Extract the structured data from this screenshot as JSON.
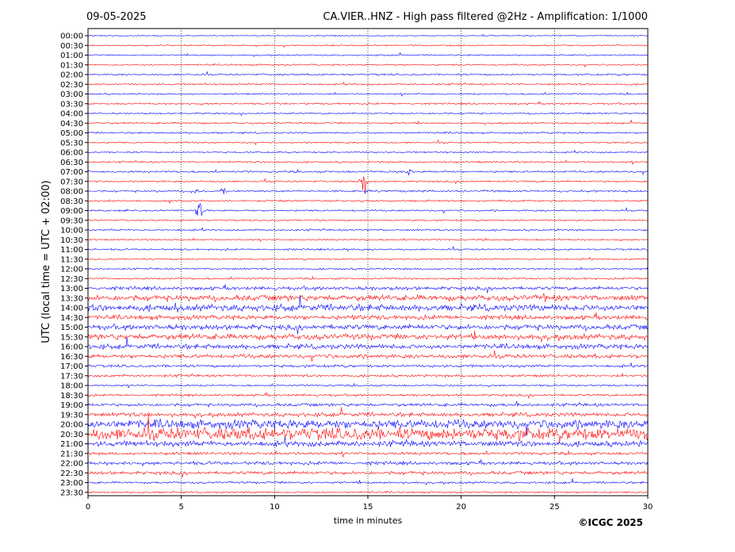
{
  "header": {
    "date": "09-05-2025",
    "title": "CA.VIER..HNZ - High pass filtered @2Hz - Amplification: 1/1000"
  },
  "copyright": "©ICGC 2025",
  "chart_data": {
    "type": "line",
    "description_type": "helicorder",
    "xlabel": "time in minutes",
    "ylabel": "UTC (local time = UTC + 02:00)",
    "xlim": [
      0,
      30
    ],
    "x_ticks": [
      "0",
      "5",
      "10",
      "15",
      "20",
      "25",
      "30"
    ],
    "x_gridlines": [
      5,
      10,
      15,
      20,
      25
    ],
    "row_labels": [
      "00:00",
      "00:30",
      "01:00",
      "01:30",
      "02:00",
      "02:30",
      "03:00",
      "03:30",
      "04:00",
      "04:30",
      "05:00",
      "05:30",
      "06:00",
      "06:30",
      "07:00",
      "07:30",
      "08:00",
      "08:30",
      "09:00",
      "09:30",
      "10:00",
      "10:30",
      "11:00",
      "11:30",
      "12:00",
      "12:30",
      "13:00",
      "13:30",
      "14:00",
      "14:30",
      "15:00",
      "15:30",
      "16:00",
      "16:30",
      "17:00",
      "17:30",
      "18:00",
      "18:30",
      "19:00",
      "19:30",
      "20:00",
      "20:30",
      "21:00",
      "21:30",
      "22:00",
      "22:30",
      "23:00",
      "23:30"
    ],
    "colors": [
      "#ff0000",
      "#0000ff"
    ],
    "trace_start_color": "blue",
    "trace_noise_levels": [
      0.5,
      0.6,
      0.6,
      0.7,
      0.8,
      0.8,
      0.7,
      0.8,
      0.7,
      0.8,
      0.8,
      0.7,
      0.7,
      0.8,
      0.9,
      0.8,
      0.9,
      0.8,
      0.8,
      0.7,
      0.8,
      0.7,
      0.8,
      0.7,
      0.8,
      0.8,
      1.6,
      2.6,
      3.0,
      2.0,
      2.4,
      2.6,
      2.2,
      1.8,
      1.2,
      1.1,
      0.8,
      1.0,
      1.4,
      1.8,
      4.0,
      5.5,
      2.5,
      1.3,
      1.5,
      1.5,
      1.0,
      0.8
    ],
    "events": [
      {
        "row": "07:00",
        "minute": 17.2,
        "amplitude": 3
      },
      {
        "row": "07:30",
        "minute": 14.8,
        "amplitude": 14
      },
      {
        "row": "08:00",
        "minute": 5.7,
        "amplitude": 3
      },
      {
        "row": "08:00",
        "minute": 7.3,
        "amplitude": 3
      },
      {
        "row": "09:00",
        "minute": 6.0,
        "amplitude": 13
      },
      {
        "row": "11:00",
        "minute": 13.8,
        "amplitude": 3
      },
      {
        "row": "19:00",
        "minute": 23.0,
        "amplitude": 4
      },
      {
        "row": "19:30",
        "minute": 3.3,
        "amplitude": 4
      },
      {
        "row": "14:30",
        "minute": 14.2,
        "amplitude": 3
      },
      {
        "row": "13:30",
        "minute": 24.5,
        "amplitude": 5
      },
      {
        "row": "14:00",
        "minute": 4.8,
        "amplitude": 4
      }
    ]
  }
}
